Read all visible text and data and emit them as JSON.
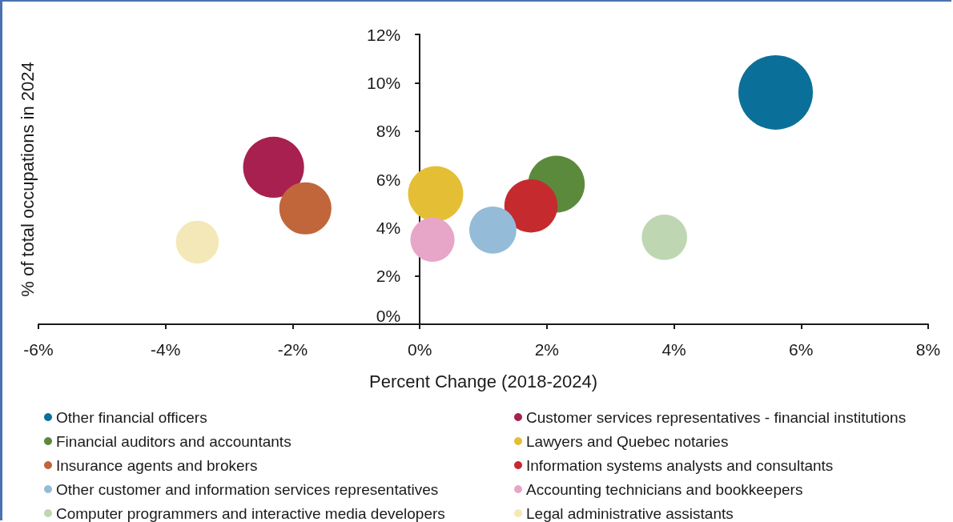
{
  "chart_data": {
    "type": "bubble",
    "xlabel": "Percent Change (2018-2024)",
    "ylabel": "% of total occupations in 2024",
    "xlim": [
      -6,
      8
    ],
    "xticks": [
      {
        "value": -6,
        "label": "-6%"
      },
      {
        "value": -4,
        "label": "-4%"
      },
      {
        "value": -2,
        "label": "-2%"
      },
      {
        "value": 0,
        "label": "0%"
      },
      {
        "value": 2,
        "label": "2%"
      },
      {
        "value": 4,
        "label": "4%"
      },
      {
        "value": 6,
        "label": "6%"
      },
      {
        "value": 8,
        "label": "8%"
      }
    ],
    "ylim": [
      0,
      12
    ],
    "yticks": [
      {
        "value": 0,
        "label": "0%"
      },
      {
        "value": 2,
        "label": "2%"
      },
      {
        "value": 4,
        "label": "4%"
      },
      {
        "value": 6,
        "label": "6%"
      },
      {
        "value": 8,
        "label": "8%"
      },
      {
        "value": 10,
        "label": "10%"
      },
      {
        "value": 12,
        "label": "12%"
      }
    ],
    "marker": "circle",
    "legend": "bottom",
    "series": [
      {
        "name": "Other financial officers",
        "color": "#0b7099",
        "x": [
          5.6
        ],
        "values": [
          9.6
        ],
        "sizes": [
          1
        ]
      },
      {
        "name": "Customer services representatives - financial institutions",
        "color": "#a8204f",
        "x": [
          -2.3
        ],
        "values": [
          6.5
        ],
        "sizes": [
          0.67
        ]
      },
      {
        "name": "Financial auditors and accountants",
        "color": "#5b8a3d",
        "x": [
          2.15
        ],
        "values": [
          5.8
        ],
        "sizes": [
          0.58
        ]
      },
      {
        "name": "Lawyers and Quebec notaries",
        "color": "#e4bf35",
        "x": [
          0.25
        ],
        "values": [
          5.4
        ],
        "sizes": [
          0.55
        ]
      },
      {
        "name": "Insurance agents and brokers",
        "color": "#c1663b",
        "x": [
          -1.8
        ],
        "values": [
          4.8
        ],
        "sizes": [
          0.49
        ]
      },
      {
        "name": "Information systems analysts and consultants",
        "color": "#c52a2f",
        "x": [
          1.75
        ],
        "values": [
          4.9
        ],
        "sizes": [
          0.51
        ]
      },
      {
        "name": "Other customer and information services representatives",
        "color": "#94bcd8",
        "x": [
          1.15
        ],
        "values": [
          3.9
        ],
        "sizes": [
          0.4
        ]
      },
      {
        "name": "Accounting technicians and bookkeepers",
        "color": "#e7a6c8",
        "x": [
          0.2
        ],
        "values": [
          3.5
        ],
        "sizes": [
          0.35
        ]
      },
      {
        "name": "Computer programmers and interactive media developers",
        "color": "#bed7b2",
        "x": [
          3.85
        ],
        "values": [
          3.6
        ],
        "sizes": [
          0.37
        ]
      },
      {
        "name": "Legal administrative assistants",
        "color": "#f4e8b8",
        "x": [
          -3.5
        ],
        "values": [
          3.4
        ],
        "sizes": [
          0.33
        ]
      }
    ]
  }
}
